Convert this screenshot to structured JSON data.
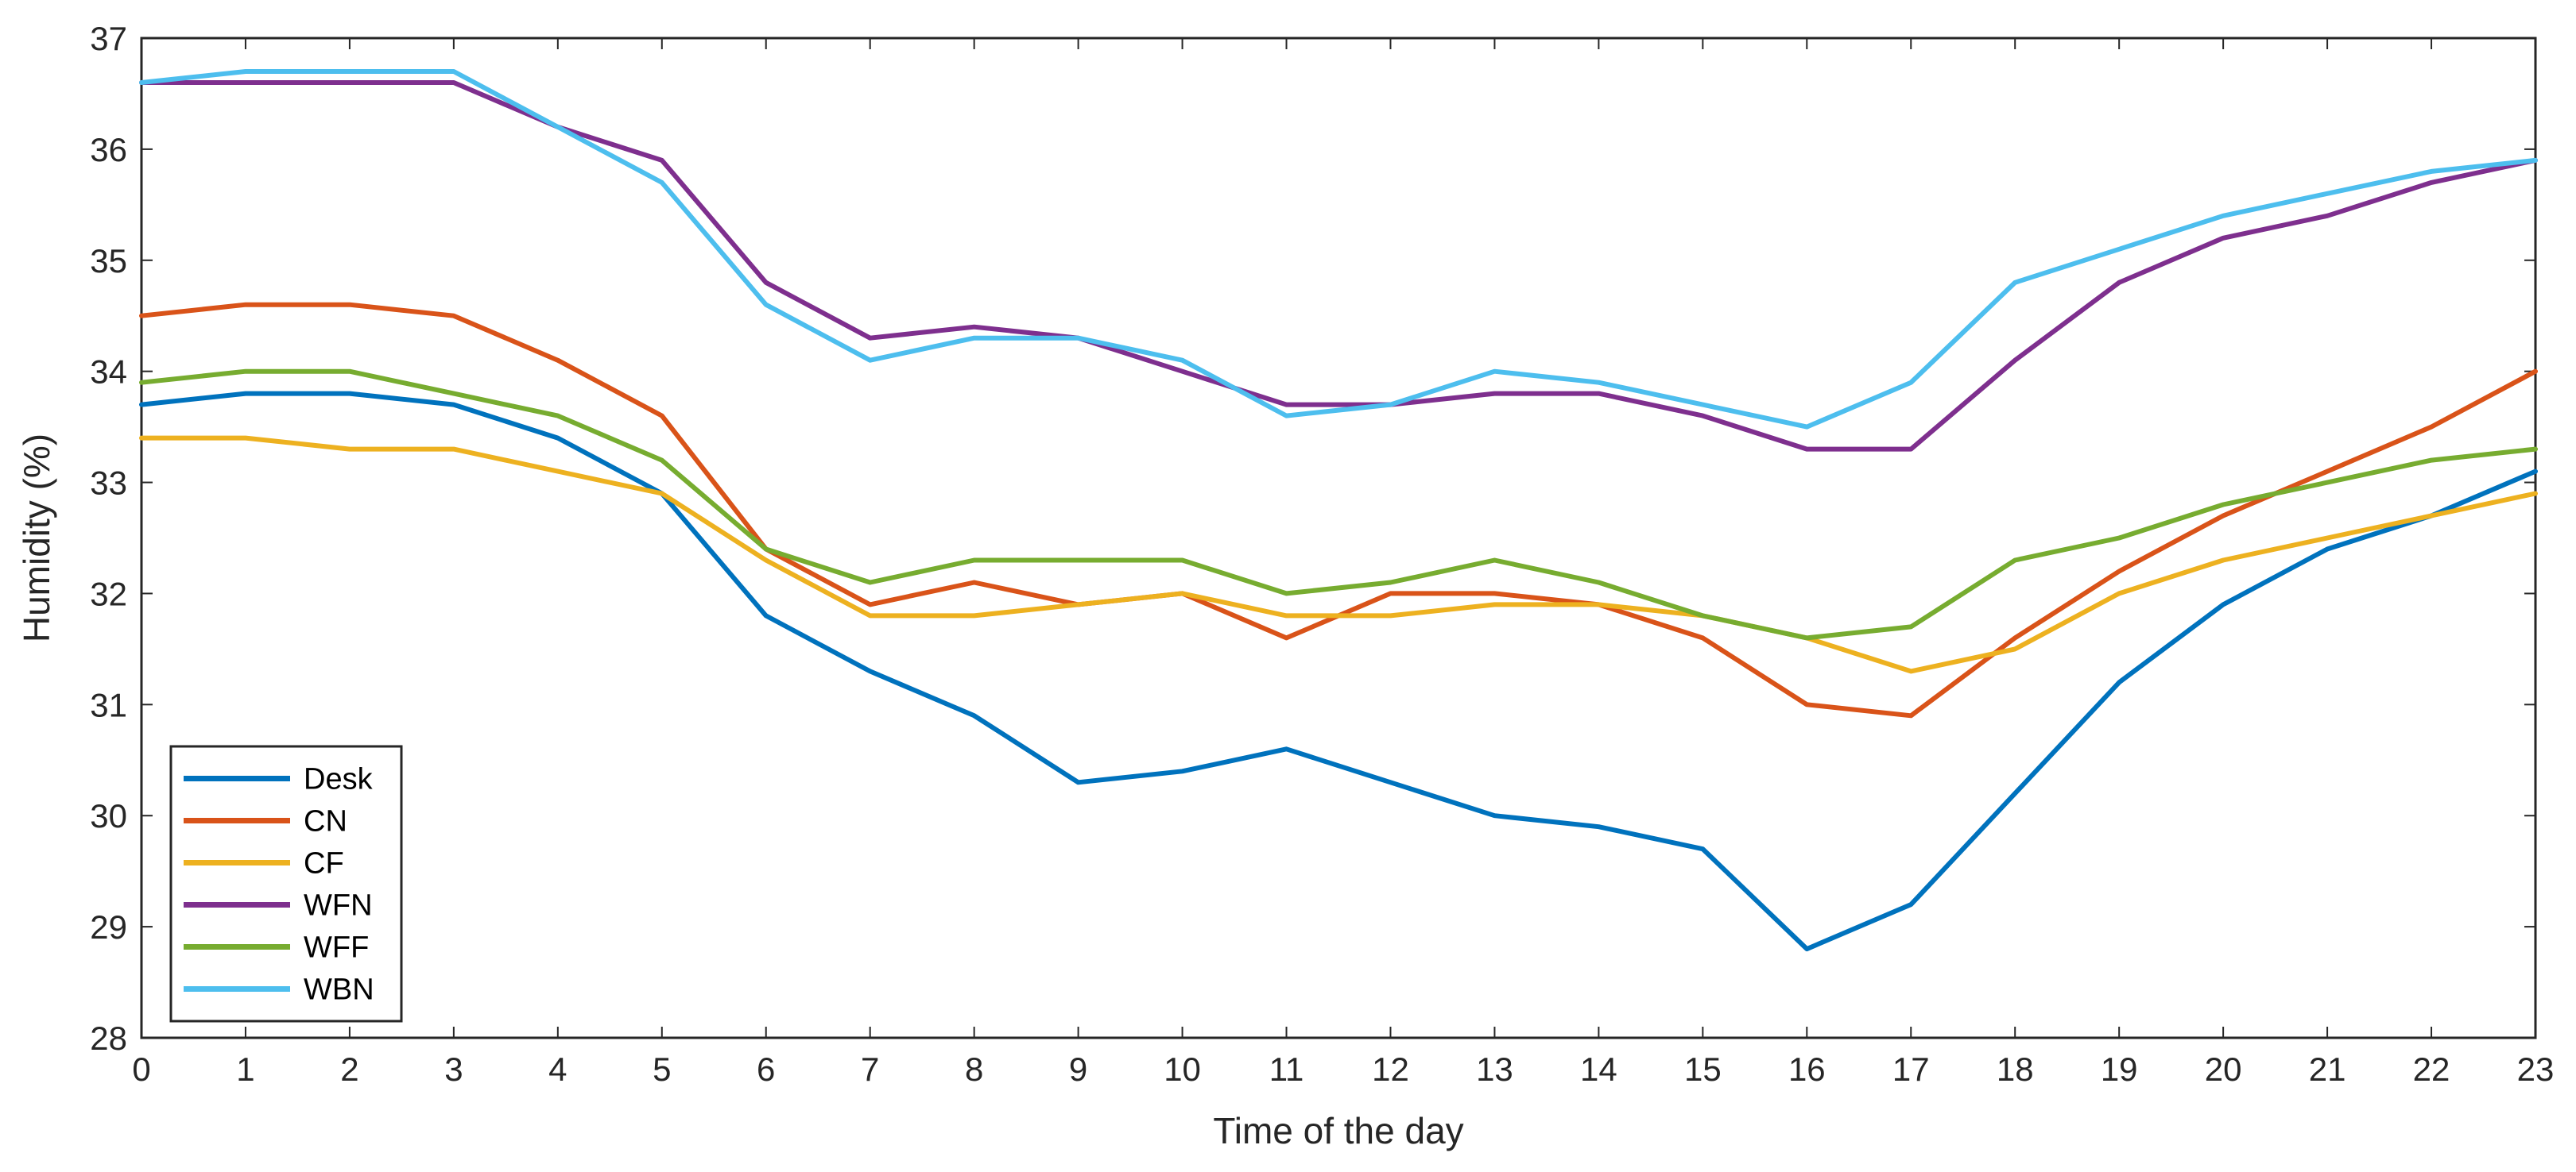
{
  "chart_data": {
    "type": "line",
    "title": "",
    "xlabel": "Time of the day",
    "ylabel": "Humidity (%)",
    "xlim": [
      0,
      23
    ],
    "ylim": [
      28,
      37
    ],
    "xticks": [
      0,
      1,
      2,
      3,
      4,
      5,
      6,
      7,
      8,
      9,
      10,
      11,
      12,
      13,
      14,
      15,
      16,
      17,
      18,
      19,
      20,
      21,
      22,
      23
    ],
    "yticks": [
      28,
      29,
      30,
      31,
      32,
      33,
      34,
      35,
      36,
      37
    ],
    "grid": false,
    "legend_position": "bottom-left",
    "x": [
      0,
      1,
      2,
      3,
      4,
      5,
      6,
      7,
      8,
      9,
      10,
      11,
      12,
      13,
      14,
      15,
      16,
      17,
      18,
      19,
      20,
      21,
      22,
      23
    ],
    "series": [
      {
        "name": "Desk",
        "color": "#0072BD",
        "values": [
          33.7,
          33.8,
          33.8,
          33.7,
          33.4,
          32.9,
          31.8,
          31.3,
          30.9,
          30.3,
          30.4,
          30.6,
          30.3,
          30.0,
          29.9,
          29.7,
          28.8,
          29.2,
          30.2,
          31.2,
          31.9,
          32.4,
          32.7,
          33.1
        ]
      },
      {
        "name": "CN",
        "color": "#D95319",
        "values": [
          34.5,
          34.6,
          34.6,
          34.5,
          34.1,
          33.6,
          32.4,
          31.9,
          32.1,
          31.9,
          32.0,
          31.6,
          32.0,
          32.0,
          31.9,
          31.6,
          31.0,
          30.9,
          31.6,
          32.2,
          32.7,
          33.1,
          33.5,
          34.0
        ]
      },
      {
        "name": "CF",
        "color": "#EDB120",
        "values": [
          33.4,
          33.4,
          33.3,
          33.3,
          33.1,
          32.9,
          32.3,
          31.8,
          31.8,
          31.9,
          32.0,
          31.8,
          31.8,
          31.9,
          31.9,
          31.8,
          31.6,
          31.3,
          31.5,
          32.0,
          32.3,
          32.5,
          32.7,
          32.9
        ]
      },
      {
        "name": "WFN",
        "color": "#7E2F8E",
        "values": [
          36.6,
          36.6,
          36.6,
          36.6,
          36.2,
          35.9,
          34.8,
          34.3,
          34.4,
          34.3,
          34.0,
          33.7,
          33.7,
          33.8,
          33.8,
          33.6,
          33.3,
          33.3,
          34.1,
          34.8,
          35.2,
          35.4,
          35.7,
          35.9
        ]
      },
      {
        "name": "WFF",
        "color": "#77AC30",
        "values": [
          33.9,
          34.0,
          34.0,
          33.8,
          33.6,
          33.2,
          32.4,
          32.1,
          32.3,
          32.3,
          32.3,
          32.0,
          32.1,
          32.3,
          32.1,
          31.8,
          31.6,
          31.7,
          32.3,
          32.5,
          32.8,
          33.0,
          33.2,
          33.3
        ]
      },
      {
        "name": "WBN",
        "color": "#4DBEEE",
        "values": [
          36.6,
          36.7,
          36.7,
          36.7,
          36.2,
          35.7,
          34.6,
          34.1,
          34.3,
          34.3,
          34.1,
          33.6,
          33.7,
          34.0,
          33.9,
          33.7,
          33.5,
          33.9,
          34.8,
          35.1,
          35.4,
          35.6,
          35.8,
          35.9
        ]
      }
    ]
  }
}
